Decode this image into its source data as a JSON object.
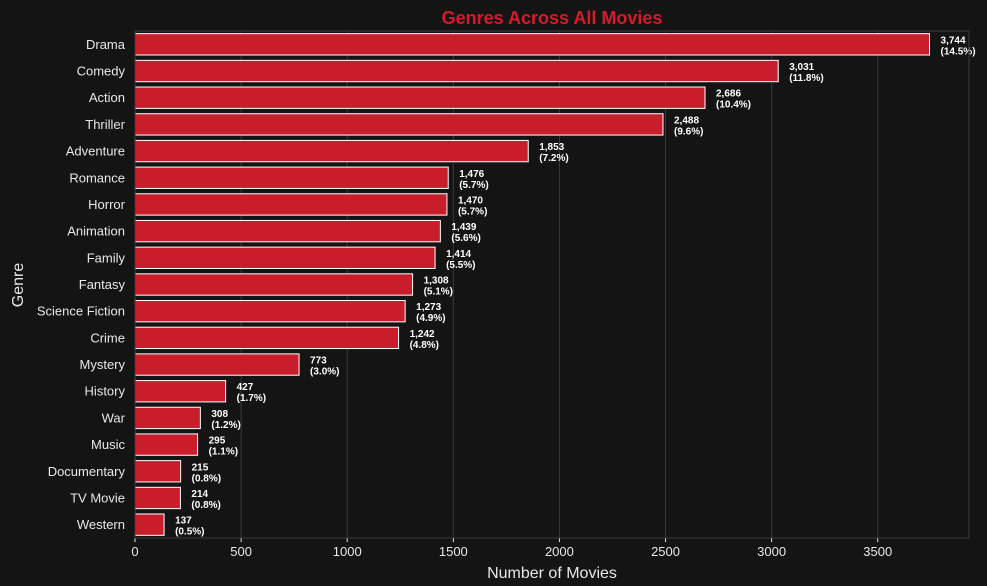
{
  "chart_data": {
    "type": "bar",
    "orientation": "horizontal",
    "title": "Genres Across All Movies",
    "xlabel": "Number of Movies",
    "ylabel": "Genre",
    "xlim": [
      0,
      3930
    ],
    "xticks": [
      "0",
      "500",
      "1000",
      "1500",
      "2000",
      "2500",
      "3000",
      "3500"
    ],
    "grid": "x",
    "legend": "none",
    "colors": {
      "background": "#141414",
      "bar": "#c81e2c",
      "bar_edge": "#ffffff",
      "title": "#d7192b",
      "text": "#e8e8e8",
      "grid": "#3a3a3a"
    },
    "categories": [
      "Drama",
      "Comedy",
      "Action",
      "Thriller",
      "Adventure",
      "Romance",
      "Horror",
      "Animation",
      "Family",
      "Fantasy",
      "Science Fiction",
      "Crime",
      "Mystery",
      "History",
      "War",
      "Music",
      "Documentary",
      "TV Movie",
      "Western"
    ],
    "values": [
      3744,
      3031,
      2686,
      2488,
      1853,
      1476,
      1470,
      1439,
      1414,
      1308,
      1273,
      1242,
      773,
      427,
      308,
      295,
      215,
      214,
      137
    ],
    "data_labels": [
      "3,744",
      "3,031",
      "2,686",
      "2,488",
      "1,853",
      "1,476",
      "1,470",
      "1,439",
      "1,414",
      "1,308",
      "1,273",
      "1,242",
      "773",
      "427",
      "308",
      "295",
      "215",
      "214",
      "137"
    ],
    "percent_labels": [
      "(14.5%)",
      "(11.8%)",
      "(10.4%)",
      "(9.6%)",
      "(7.2%)",
      "(5.7%)",
      "(5.7%)",
      "(5.6%)",
      "(5.5%)",
      "(5.1%)",
      "(4.9%)",
      "(4.8%)",
      "(3.0%)",
      "(1.7%)",
      "(1.2%)",
      "(1.1%)",
      "(0.8%)",
      "(0.8%)",
      "(0.5%)"
    ]
  }
}
